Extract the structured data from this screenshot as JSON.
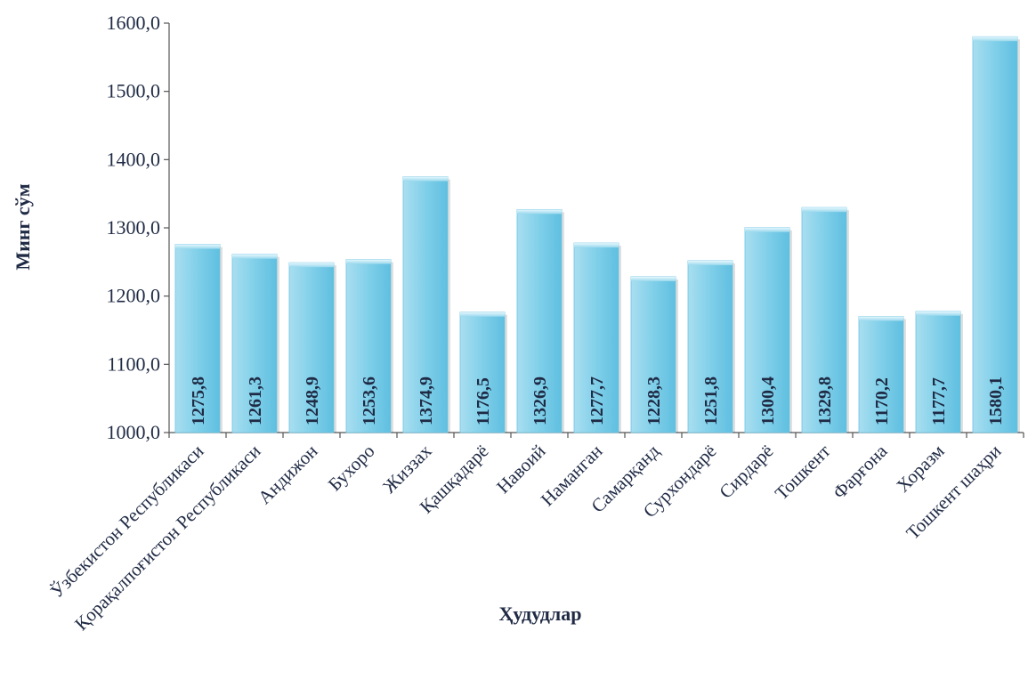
{
  "chart_data": {
    "type": "bar",
    "xlabel": "Ҳудудлар",
    "ylabel": "Минг сўм",
    "ylim": [
      1000,
      1600
    ],
    "yticks": [
      "1000,0",
      "1100,0",
      "1200,0",
      "1300,0",
      "1400,0",
      "1500,0",
      "1600,0"
    ],
    "categories": [
      "Ўзбекистон Республикаси",
      "Қорақалпоғистон Республикаси",
      "Андижон",
      "Бухоро",
      "Жиззах",
      "Қашқадарё",
      "Навоий",
      "Наманган",
      "Самарқанд",
      "Сурхондарё",
      "Сирдарё",
      "Тошкент",
      "Фарғона",
      "Хоразм",
      "Тошкент шаҳри"
    ],
    "values": [
      1275.8,
      1261.3,
      1248.9,
      1253.6,
      1374.9,
      1176.5,
      1326.9,
      1277.7,
      1228.3,
      1251.8,
      1300.4,
      1329.8,
      1170.2,
      1177.7,
      1580.1
    ],
    "value_labels": [
      "1275,8",
      "1261,3",
      "1248,9",
      "1253,6",
      "1374,9",
      "1176,5",
      "1326,9",
      "1277,7",
      "1228,3",
      "1251,8",
      "1300,4",
      "1329,8",
      "1170,2",
      "1177,7",
      "1580,1"
    ],
    "grid": false,
    "legend": "none",
    "colors": {
      "bar": "#7ecfe8",
      "bar_light": "#bfeaf7",
      "bar_dark": "#4fb3d6",
      "axis": "#444444",
      "text": "#1f2a44"
    }
  }
}
